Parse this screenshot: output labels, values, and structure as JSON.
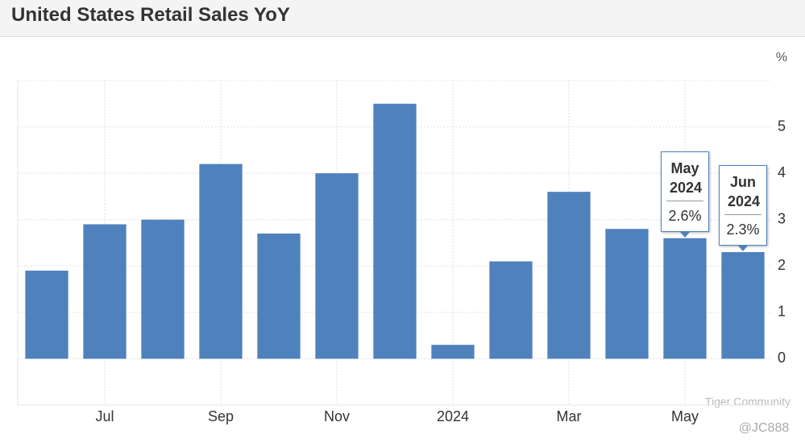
{
  "chart_data": {
    "type": "bar",
    "title": "United States Retail Sales YoY",
    "unit": "%",
    "categories": [
      null,
      "Jul",
      null,
      "Sep",
      null,
      "Nov",
      null,
      "2024",
      null,
      "Mar",
      null,
      "May",
      null
    ],
    "values": [
      1.9,
      2.9,
      3.0,
      4.2,
      2.7,
      4.0,
      5.5,
      0.3,
      2.1,
      3.6,
      2.8,
      2.6,
      2.3
    ],
    "tooltip_titles": [
      null,
      null,
      null,
      null,
      null,
      null,
      null,
      null,
      null,
      null,
      null,
      "May 2024",
      "Jun 2024"
    ],
    "value_labels": [
      null,
      null,
      null,
      null,
      null,
      null,
      null,
      null,
      null,
      null,
      null,
      "2.6%",
      "2.3%"
    ],
    "color": "#4f81bd",
    "ylim": [
      -1,
      6
    ],
    "yticks": [
      0,
      1,
      2,
      3,
      4,
      5
    ],
    "grid": true,
    "watermark": "Tiger Community",
    "credit": "@JC888"
  }
}
